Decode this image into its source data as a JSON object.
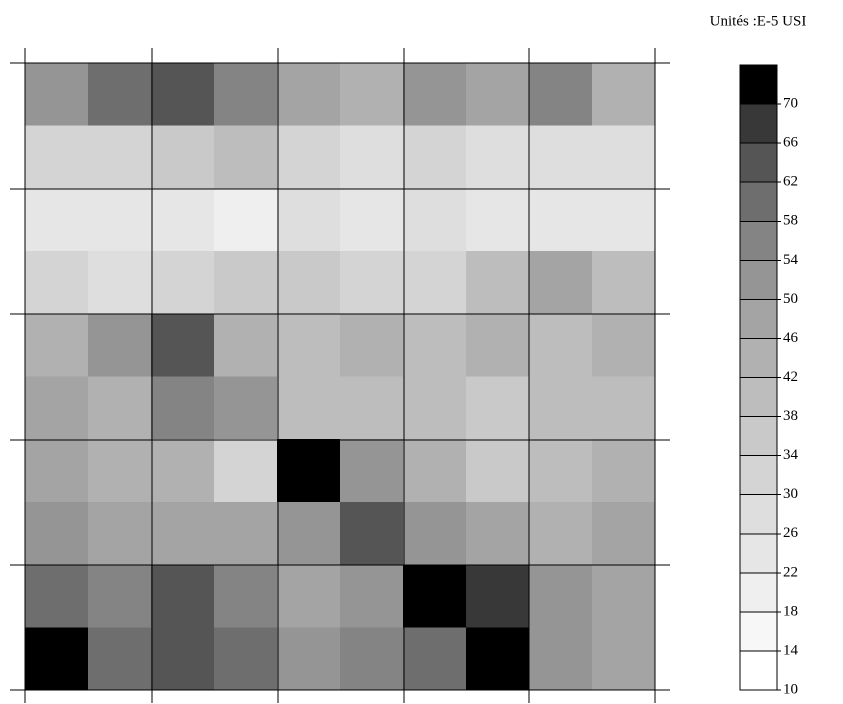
{
  "chart_data": {
    "type": "contour",
    "title": "Unités :E-5 USI",
    "z": [
      [
        50,
        58,
        62,
        54,
        46,
        44,
        50,
        48,
        56,
        44
      ],
      [
        30,
        30,
        34,
        40,
        30,
        26,
        30,
        28,
        26,
        28
      ],
      [
        24,
        22,
        24,
        20,
        26,
        22,
        26,
        24,
        22,
        24
      ],
      [
        30,
        28,
        30,
        36,
        34,
        30,
        32,
        38,
        46,
        40
      ],
      [
        44,
        50,
        62,
        44,
        40,
        42,
        38,
        44,
        40,
        42
      ],
      [
        46,
        44,
        56,
        50,
        38,
        40,
        38,
        36,
        40,
        38
      ],
      [
        46,
        42,
        42,
        30,
        70,
        52,
        44,
        34,
        40,
        44
      ],
      [
        52,
        48,
        46,
        46,
        50,
        64,
        50,
        46,
        44,
        48
      ],
      [
        58,
        54,
        62,
        54,
        46,
        52,
        70,
        66,
        50,
        48
      ],
      [
        70,
        58,
        64,
        58,
        50,
        56,
        60,
        70,
        50,
        48
      ]
    ],
    "zlim": [
      10,
      74
    ],
    "zticks": [
      10,
      14,
      18,
      22,
      26,
      30,
      34,
      38,
      42,
      46,
      50,
      54,
      58,
      62,
      66,
      70
    ],
    "colors": [
      "#ffffff",
      "#f7f7f7",
      "#efefef",
      "#e6e6e6",
      "#dedede",
      "#d4d4d4",
      "#c9c9c9",
      "#bdbdbd",
      "#b1b1b1",
      "#a4a4a4",
      "#959595",
      "#848484",
      "#6e6e6e",
      "#555555",
      "#383838",
      "#000000"
    ]
  }
}
